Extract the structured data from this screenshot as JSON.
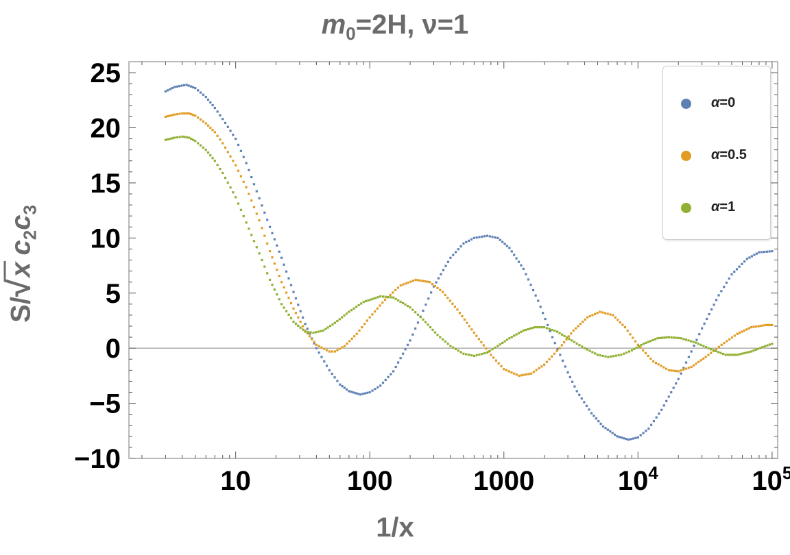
{
  "chart_data": {
    "type": "line",
    "title_var": "m",
    "title_sub": "0",
    "title_rest": "=2H, ν=1",
    "xlabel": "1/x",
    "ylabel_prefix": "S/",
    "ylabel_radicand": "x",
    "ylabel_c": "c",
    "ylabel_sub2": "2",
    "ylabel_sub3": "3",
    "xscale": "log",
    "xlim": [
      1.6,
      110000
    ],
    "ylim": [
      -10,
      26
    ],
    "yticks": [
      25,
      20,
      15,
      10,
      5,
      0,
      -5,
      -10
    ],
    "ytick_labels": [
      "25",
      "20",
      "15",
      "10",
      "5",
      "0",
      "−5",
      "−10"
    ],
    "xticks": [
      {
        "value": 10,
        "label": "10"
      },
      {
        "value": 100,
        "label": "100"
      },
      {
        "value": 1000,
        "label": "1000"
      },
      {
        "value": 10000,
        "label": "10",
        "sup": "4"
      },
      {
        "value": 100000,
        "label": "10",
        "sup": "5"
      }
    ],
    "legend_position": "top-right",
    "series": [
      {
        "name": "α=0",
        "legend_var": "α",
        "legend_val": "=0",
        "color": "#5e81b5",
        "points": [
          [
            3,
            23.3
          ],
          [
            3.5,
            23.7
          ],
          [
            4.3,
            23.9
          ],
          [
            5,
            23.6
          ],
          [
            6,
            22.8
          ],
          [
            7,
            21.8
          ],
          [
            8,
            20.8
          ],
          [
            10,
            19.0
          ],
          [
            12,
            16.8
          ],
          [
            15,
            13.6
          ],
          [
            18,
            11.0
          ],
          [
            22,
            8.2
          ],
          [
            27,
            5.1
          ],
          [
            33,
            2.2
          ],
          [
            40,
            0.0
          ],
          [
            50,
            -2.0
          ],
          [
            60,
            -3.3
          ],
          [
            70,
            -3.9
          ],
          [
            85,
            -4.2
          ],
          [
            100,
            -4.0
          ],
          [
            120,
            -3.4
          ],
          [
            150,
            -2.1
          ],
          [
            200,
            0.7
          ],
          [
            250,
            3.4
          ],
          [
            300,
            5.6
          ],
          [
            400,
            8.2
          ],
          [
            500,
            9.5
          ],
          [
            600,
            10.0
          ],
          [
            750,
            10.2
          ],
          [
            900,
            10.0
          ],
          [
            1100,
            9.1
          ],
          [
            1400,
            7.2
          ],
          [
            1800,
            4.3
          ],
          [
            2300,
            1.0
          ],
          [
            3000,
            -2.2
          ],
          [
            3500,
            -3.9
          ],
          [
            4500,
            -5.9
          ],
          [
            5500,
            -7.1
          ],
          [
            7000,
            -8.0
          ],
          [
            8500,
            -8.3
          ],
          [
            10000,
            -8.1
          ],
          [
            12000,
            -7.3
          ],
          [
            15000,
            -5.6
          ],
          [
            20000,
            -2.8
          ],
          [
            25000,
            -0.3
          ],
          [
            30000,
            1.8
          ],
          [
            40000,
            4.8
          ],
          [
            50000,
            6.7
          ],
          [
            65000,
            8.1
          ],
          [
            80000,
            8.7
          ],
          [
            100000,
            8.8
          ]
        ]
      },
      {
        "name": "α=0.5",
        "legend_var": "α",
        "legend_val": "=0.5",
        "color": "#e19c24",
        "points": [
          [
            3,
            21.0
          ],
          [
            3.5,
            21.2
          ],
          [
            4,
            21.3
          ],
          [
            4.5,
            21.3
          ],
          [
            5,
            21.1
          ],
          [
            6,
            20.4
          ],
          [
            7,
            19.6
          ],
          [
            8,
            18.6
          ],
          [
            10,
            16.6
          ],
          [
            12,
            14.6
          ],
          [
            15,
            11.6
          ],
          [
            18,
            8.8
          ],
          [
            22,
            6.0
          ],
          [
            27,
            3.6
          ],
          [
            33,
            1.6
          ],
          [
            40,
            0.3
          ],
          [
            50,
            -0.3
          ],
          [
            55,
            -0.3
          ],
          [
            65,
            0.2
          ],
          [
            80,
            1.3
          ],
          [
            100,
            2.8
          ],
          [
            130,
            4.4
          ],
          [
            170,
            5.7
          ],
          [
            220,
            6.2
          ],
          [
            280,
            6.0
          ],
          [
            350,
            5.1
          ],
          [
            450,
            3.5
          ],
          [
            600,
            1.4
          ],
          [
            800,
            -0.6
          ],
          [
            1000,
            -1.9
          ],
          [
            1300,
            -2.5
          ],
          [
            1600,
            -2.3
          ],
          [
            2000,
            -1.5
          ],
          [
            2600,
            0.0
          ],
          [
            3300,
            1.6
          ],
          [
            4200,
            2.8
          ],
          [
            5200,
            3.3
          ],
          [
            6500,
            3.0
          ],
          [
            8000,
            1.9
          ],
          [
            10000,
            0.3
          ],
          [
            13000,
            -1.2
          ],
          [
            17000,
            -2.0
          ],
          [
            20000,
            -2.1
          ],
          [
            25000,
            -1.7
          ],
          [
            32000,
            -0.8
          ],
          [
            42000,
            0.3
          ],
          [
            55000,
            1.3
          ],
          [
            70000,
            1.9
          ],
          [
            90000,
            2.1
          ],
          [
            100000,
            2.1
          ]
        ]
      },
      {
        "name": "α=1",
        "legend_var": "α",
        "legend_val": "=1",
        "color": "#8fb032",
        "points": [
          [
            3,
            18.9
          ],
          [
            3.5,
            19.1
          ],
          [
            4,
            19.2
          ],
          [
            4.5,
            19.1
          ],
          [
            5,
            18.8
          ],
          [
            6,
            18.0
          ],
          [
            7,
            17.0
          ],
          [
            8,
            15.9
          ],
          [
            10,
            13.7
          ],
          [
            12,
            11.4
          ],
          [
            15,
            8.6
          ],
          [
            18,
            6.2
          ],
          [
            22,
            4.0
          ],
          [
            27,
            2.4
          ],
          [
            33,
            1.5
          ],
          [
            38,
            1.4
          ],
          [
            45,
            1.6
          ],
          [
            55,
            2.3
          ],
          [
            70,
            3.3
          ],
          [
            90,
            4.2
          ],
          [
            120,
            4.7
          ],
          [
            150,
            4.6
          ],
          [
            200,
            3.7
          ],
          [
            250,
            2.6
          ],
          [
            320,
            1.2
          ],
          [
            400,
            0.2
          ],
          [
            500,
            -0.5
          ],
          [
            600,
            -0.7
          ],
          [
            750,
            -0.4
          ],
          [
            900,
            0.2
          ],
          [
            1100,
            0.9
          ],
          [
            1400,
            1.6
          ],
          [
            1700,
            1.9
          ],
          [
            2000,
            1.9
          ],
          [
            2500,
            1.5
          ],
          [
            3200,
            0.7
          ],
          [
            4000,
            0.0
          ],
          [
            5000,
            -0.6
          ],
          [
            6000,
            -0.8
          ],
          [
            7500,
            -0.6
          ],
          [
            9000,
            -0.2
          ],
          [
            11000,
            0.4
          ],
          [
            14000,
            0.9
          ],
          [
            17000,
            1.0
          ],
          [
            21000,
            0.9
          ],
          [
            27000,
            0.5
          ],
          [
            35000,
            -0.1
          ],
          [
            45000,
            -0.6
          ],
          [
            55000,
            -0.6
          ],
          [
            70000,
            -0.3
          ],
          [
            85000,
            0.1
          ],
          [
            100000,
            0.4
          ]
        ]
      }
    ]
  }
}
